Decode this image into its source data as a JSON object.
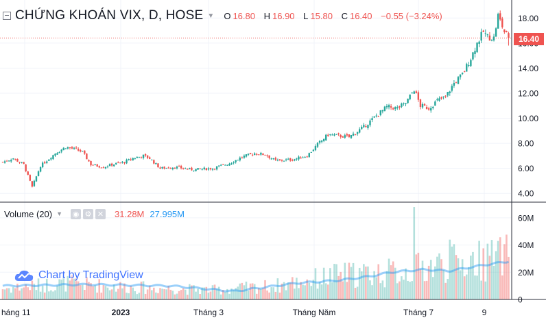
{
  "header": {
    "title": "CHỨNG KHOÁN VIX, D, HOSE",
    "ohlc": [
      {
        "k": "O",
        "v": "16.80"
      },
      {
        "k": "H",
        "v": "16.90"
      },
      {
        "k": "L",
        "v": "15.80"
      },
      {
        "k": "C",
        "v": "16.40"
      }
    ],
    "change": "−0.55 (−3.24%)"
  },
  "last_price_tag": "16.40",
  "volume_pane": {
    "label": "Volume (20)",
    "volume_value": "31.28M",
    "ma_value": "27.995M"
  },
  "watermark": "Chart by TradingView",
  "colors": {
    "up": "#26a69a",
    "down": "#ef5350",
    "ma": "#2196f3",
    "grid": "#f0f3fa"
  },
  "chart_data": {
    "type": "candlestick",
    "price_axis": {
      "ticks": [
        "4.00",
        "6.00",
        "8.00",
        "10.00",
        "12.00",
        "14.00",
        "16.00",
        "18.00"
      ],
      "range": [
        3.3,
        19.0
      ]
    },
    "volume_axis": {
      "ticks": [
        "0",
        "20M",
        "40M",
        "60M"
      ],
      "range": [
        0,
        65
      ]
    },
    "time_axis": {
      "ticks": [
        "háng 11",
        "2023",
        "Tháng 3",
        "Tháng Năm",
        "Tháng 7",
        "9"
      ],
      "bold": [
        1
      ]
    },
    "close_anchors": [
      [
        0,
        6.5
      ],
      [
        5,
        6.8
      ],
      [
        10,
        6.3
      ],
      [
        14,
        4.5
      ],
      [
        18,
        6.2
      ],
      [
        25,
        7.2
      ],
      [
        30,
        7.7
      ],
      [
        35,
        7.5
      ],
      [
        38,
        7.3
      ],
      [
        42,
        6.3
      ],
      [
        48,
        6.1
      ],
      [
        52,
        6.3
      ],
      [
        58,
        6.5
      ],
      [
        62,
        6.8
      ],
      [
        67,
        7.0
      ],
      [
        70,
        6.8
      ],
      [
        75,
        6.0
      ],
      [
        82,
        6.1
      ],
      [
        90,
        5.9
      ],
      [
        100,
        6.0
      ],
      [
        108,
        6.4
      ],
      [
        114,
        6.9
      ],
      [
        120,
        7.2
      ],
      [
        125,
        7.1
      ],
      [
        130,
        6.6
      ],
      [
        138,
        6.7
      ],
      [
        145,
        7.0
      ],
      [
        150,
        7.9
      ],
      [
        155,
        8.7
      ],
      [
        160,
        8.6
      ],
      [
        165,
        8.5
      ],
      [
        172,
        9.3
      ],
      [
        178,
        10.2
      ],
      [
        183,
        10.9
      ],
      [
        188,
        10.8
      ],
      [
        192,
        11.2
      ],
      [
        196,
        12.3
      ],
      [
        199,
        11.0
      ],
      [
        203,
        10.8
      ],
      [
        207,
        11.4
      ],
      [
        211,
        11.7
      ],
      [
        215,
        12.8
      ],
      [
        219,
        13.5
      ],
      [
        223,
        14.8
      ],
      [
        226,
        16.0
      ],
      [
        229,
        16.9
      ],
      [
        231,
        16.5
      ],
      [
        234,
        16.4
      ],
      [
        236,
        18.2
      ],
      [
        239,
        16.9
      ],
      [
        241,
        16.4
      ]
    ],
    "volume_anchors": [
      [
        0,
        8
      ],
      [
        30,
        12
      ],
      [
        60,
        9
      ],
      [
        100,
        7
      ],
      [
        130,
        10
      ],
      [
        160,
        18
      ],
      [
        190,
        20
      ],
      [
        205,
        25
      ],
      [
        235,
        30
      ],
      [
        241,
        31.28
      ]
    ],
    "ma_anchors": [
      [
        0,
        10
      ],
      [
        40,
        11
      ],
      [
        80,
        10
      ],
      [
        110,
        6
      ],
      [
        140,
        12
      ],
      [
        160,
        14
      ],
      [
        175,
        17
      ],
      [
        185,
        20
      ],
      [
        200,
        22
      ],
      [
        213,
        21
      ],
      [
        228,
        25
      ],
      [
        241,
        28.0
      ]
    ],
    "volume_spikes": [
      [
        196,
        68
      ],
      [
        213,
        44
      ],
      [
        231,
        41
      ],
      [
        236,
        43
      ]
    ],
    "series_count": 242
  }
}
